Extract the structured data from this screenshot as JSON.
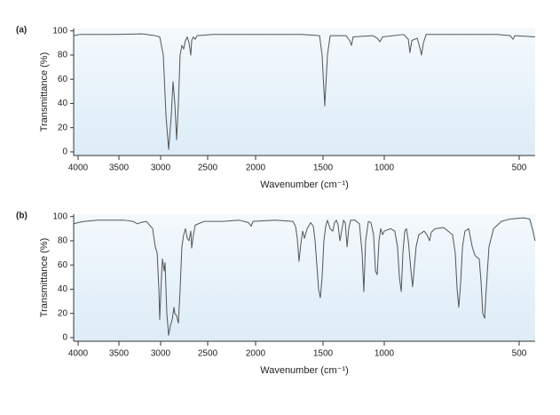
{
  "chart_data": [
    {
      "type": "line",
      "label": "(a)",
      "ylabel": "Transmittance (%)",
      "xlabel": "Wavenumber (cm⁻¹)",
      "xlim": [
        4054,
        441
      ],
      "xticks": [
        4000,
        3500,
        3000,
        2500,
        2000,
        1500,
        1000,
        500
      ],
      "ylim": [
        -3,
        102
      ],
      "yticks": [
        0,
        20,
        40,
        60,
        80,
        100
      ],
      "color": "#555555",
      "x": [
        4054,
        3978,
        3543,
        3223,
        3064,
        3011,
        2972,
        2943,
        2915,
        2887,
        2868,
        2849,
        2830,
        2811,
        2793,
        2774,
        2755,
        2736,
        2717,
        2698,
        2679,
        2670,
        2651,
        2632,
        2613,
        2444,
        1921,
        1658,
        1526,
        1507,
        1486,
        1464,
        1442,
        1312,
        1283,
        1268,
        1254,
        1094,
        1058,
        1036,
        1014,
        928,
        911,
        905,
        898,
        878,
        868,
        862,
        855,
        845,
        780,
        582,
        533,
        523,
        516,
        441
      ],
      "values": [
        96,
        97,
        97,
        97.5,
        96,
        95,
        80,
        30,
        2,
        30,
        58,
        40,
        10,
        40,
        80,
        88,
        85,
        92,
        95,
        90,
        80,
        92,
        95,
        93,
        96,
        97,
        97,
        97,
        96,
        80,
        38,
        80,
        96,
        96,
        92,
        88,
        95,
        96,
        94,
        91,
        95,
        97,
        93,
        82,
        92,
        94,
        86,
        80,
        90,
        97,
        97,
        97,
        96,
        93,
        96,
        95
      ]
    },
    {
      "type": "line",
      "label": "(b)",
      "ylabel": "Transmittance (%)",
      "xlabel": "Wavenumber (cm⁻¹)",
      "xlim": [
        4054,
        441
      ],
      "xticks": [
        4000,
        3500,
        3000,
        2500,
        2000,
        1500,
        1000,
        500
      ],
      "ylim": [
        -3,
        102
      ],
      "yticks": [
        0,
        20,
        40,
        60,
        80,
        100
      ],
      "color": "#555555",
      "x": [
        4054,
        4000,
        3924,
        3761,
        3436,
        3330,
        3277,
        3245,
        3170,
        3096,
        3064,
        3042,
        3021,
        3011,
        2991,
        2981,
        2962,
        2953,
        2943,
        2934,
        2915,
        2896,
        2877,
        2858,
        2849,
        2830,
        2811,
        2793,
        2774,
        2755,
        2736,
        2717,
        2698,
        2679,
        2670,
        2651,
        2632,
        2538,
        2352,
        2167,
        2074,
        2046,
        2028,
        1855,
        1724,
        1704,
        1691,
        1678,
        1664,
        1651,
        1638,
        1618,
        1592,
        1572,
        1559,
        1546,
        1533,
        1520,
        1507,
        1493,
        1478,
        1464,
        1442,
        1420,
        1406,
        1391,
        1377,
        1362,
        1348,
        1333,
        1319,
        1304,
        1290,
        1275,
        1239,
        1203,
        1181,
        1167,
        1152,
        1130,
        1109,
        1087,
        1072,
        1058,
        1043,
        1029,
        1014,
        1000,
        977,
        961,
        951,
        944,
        937,
        931,
        924,
        918,
        911,
        901,
        895,
        888,
        882,
        872,
        852,
        842,
        832,
        826,
        812,
        780,
        747,
        737,
        730,
        724,
        717,
        710,
        701,
        687,
        674,
        664,
        655,
        648,
        641,
        635,
        628,
        622,
        612,
        595,
        566,
        533,
        484,
        461,
        451,
        441
      ],
      "values": [
        94,
        95,
        96,
        97,
        97,
        96,
        94,
        95,
        96,
        90,
        75,
        70,
        40,
        15,
        50,
        65,
        55,
        62,
        40,
        20,
        2,
        10,
        15,
        25,
        20,
        18,
        12,
        40,
        75,
        85,
        90,
        82,
        80,
        88,
        74,
        85,
        93,
        96,
        96,
        97,
        95,
        92,
        96,
        97,
        96,
        92,
        82,
        63,
        78,
        88,
        82,
        90,
        95,
        92,
        80,
        60,
        40,
        33,
        50,
        80,
        92,
        97,
        90,
        88,
        95,
        97,
        93,
        80,
        88,
        97,
        95,
        75,
        90,
        97,
        97,
        94,
        70,
        38,
        80,
        96,
        95,
        85,
        55,
        52,
        80,
        90,
        85,
        88,
        90,
        88,
        75,
        50,
        38,
        70,
        88,
        90,
        80,
        55,
        42,
        60,
        75,
        85,
        88,
        85,
        80,
        87,
        90,
        91,
        85,
        70,
        40,
        25,
        45,
        75,
        88,
        90,
        75,
        68,
        66,
        65,
        45,
        20,
        16,
        40,
        75,
        90,
        96,
        98,
        99,
        98,
        90,
        80
      ]
    }
  ]
}
